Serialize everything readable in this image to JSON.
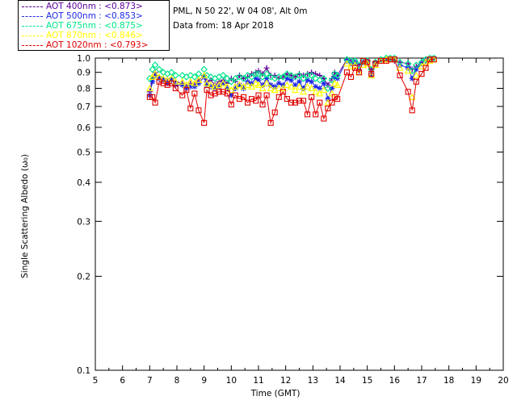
{
  "header": {
    "location": "PML, N 50 22', W 04 08', Alt 0m",
    "date": "Data from: 18 Apr 2018"
  },
  "legend": [
    {
      "label": "AOT  400nm : <0.873>",
      "color": "#5a0096"
    },
    {
      "label": "AOT  500nm : <0.853>",
      "color": "#1e28e6"
    },
    {
      "label": "AOT  675nm : <0.875>",
      "color": "#00e68c"
    },
    {
      "label": "AOT  870nm : <0.846>",
      "color": "#ffff00"
    },
    {
      "label": "AOT 1020nm : <0.793>",
      "color": "#e00000"
    }
  ],
  "chart_data": {
    "type": "scatter",
    "xlabel": "Time (GMT)",
    "ylabel": "Single Scattering Albedo (ω₀)",
    "xlim": [
      5,
      20
    ],
    "ylim": [
      0.1,
      1.0
    ],
    "yscale": "log",
    "xticks": [
      "5",
      "6",
      "7",
      "8",
      "9",
      "10",
      "11",
      "12",
      "13",
      "14",
      "15",
      "16",
      "17",
      "18",
      "19",
      "20"
    ],
    "yticks": [
      {
        "value": 1.0,
        "label": "1.0"
      },
      {
        "value": 0.9,
        "label": "0.9"
      },
      {
        "value": 0.8,
        "label": "0.8"
      },
      {
        "value": 0.7,
        "label": "0.7"
      },
      {
        "value": 0.6,
        "label": "0.6"
      },
      {
        "value": 0.5,
        "label": "0.5"
      },
      {
        "value": 0.4,
        "label": "0.4"
      },
      {
        "value": 0.3,
        "label": "0.3"
      },
      {
        "value": 0.2,
        "label": "0.2"
      },
      {
        "value": 0.1,
        "label": "0.1"
      }
    ],
    "series": [
      {
        "name": "AOT 400nm",
        "color": "#5a0096",
        "marker": "plus",
        "connect": true,
        "x": [
          7.0,
          7.1,
          7.2,
          7.35,
          7.5,
          7.65,
          7.8,
          7.95,
          8.2,
          8.35,
          8.5,
          8.65,
          8.8,
          9.0,
          9.1,
          9.25,
          9.4,
          9.55,
          9.7,
          9.85,
          10.0,
          10.15,
          10.3,
          10.45,
          10.6,
          10.75,
          10.9,
          11.0,
          11.15,
          11.3,
          11.45,
          11.6,
          11.75,
          11.9,
          12.05,
          12.2,
          12.35,
          12.5,
          12.65,
          12.8,
          12.95,
          13.1,
          13.25,
          13.4,
          13.55,
          13.7,
          13.8,
          13.9,
          14.25,
          14.4,
          14.55,
          14.7,
          14.85,
          15.0,
          15.15,
          15.3,
          15.5,
          15.7,
          15.85,
          16.0,
          16.2,
          16.5,
          16.65,
          16.8,
          17.0,
          17.15,
          17.3,
          17.45
        ],
        "y": [
          0.78,
          0.86,
          0.9,
          0.87,
          0.86,
          0.84,
          0.86,
          0.84,
          0.83,
          0.81,
          0.83,
          0.82,
          0.85,
          0.88,
          0.84,
          0.85,
          0.82,
          0.84,
          0.85,
          0.83,
          0.86,
          0.84,
          0.88,
          0.86,
          0.87,
          0.89,
          0.9,
          0.91,
          0.89,
          0.93,
          0.88,
          0.88,
          0.86,
          0.87,
          0.89,
          0.88,
          0.87,
          0.89,
          0.88,
          0.89,
          0.9,
          0.89,
          0.88,
          0.86,
          0.82,
          0.86,
          0.9,
          0.88,
          0.99,
          0.98,
          0.97,
          0.95,
          0.97,
          0.98,
          0.92,
          0.97,
          0.98,
          0.99,
          0.99,
          0.98,
          0.97,
          0.96,
          0.92,
          0.94,
          0.97,
          0.98,
          0.99,
          1.0
        ]
      },
      {
        "name": "AOT 500nm",
        "color": "#1e28e6",
        "marker": "star",
        "connect": true,
        "x": [
          7.0,
          7.1,
          7.2,
          7.35,
          7.5,
          7.65,
          7.8,
          7.95,
          8.2,
          8.35,
          8.5,
          8.65,
          8.8,
          9.0,
          9.1,
          9.25,
          9.4,
          9.55,
          9.7,
          9.85,
          10.0,
          10.15,
          10.3,
          10.45,
          10.6,
          10.75,
          10.9,
          11.0,
          11.15,
          11.3,
          11.45,
          11.6,
          11.75,
          11.9,
          12.05,
          12.2,
          12.35,
          12.5,
          12.65,
          12.8,
          12.95,
          13.1,
          13.25,
          13.4,
          13.55,
          13.7,
          13.8,
          13.9,
          14.25,
          14.4,
          14.55,
          14.7,
          14.85,
          15.0,
          15.15,
          15.3,
          15.5,
          15.7,
          15.85,
          16.0,
          16.2,
          16.5,
          16.65,
          16.8,
          17.0,
          17.15,
          17.3,
          17.45
        ],
        "y": [
          0.76,
          0.84,
          0.88,
          0.86,
          0.85,
          0.83,
          0.85,
          0.82,
          0.82,
          0.8,
          0.81,
          0.81,
          0.83,
          0.87,
          0.82,
          0.81,
          0.8,
          0.81,
          0.83,
          0.8,
          0.76,
          0.8,
          0.82,
          0.8,
          0.84,
          0.83,
          0.86,
          0.85,
          0.82,
          0.86,
          0.82,
          0.81,
          0.83,
          0.82,
          0.86,
          0.85,
          0.82,
          0.84,
          0.8,
          0.85,
          0.84,
          0.81,
          0.8,
          0.83,
          0.74,
          0.8,
          0.87,
          0.86,
          0.98,
          0.96,
          0.97,
          0.91,
          0.97,
          0.97,
          0.88,
          0.96,
          0.99,
          0.99,
          0.99,
          0.99,
          0.95,
          0.93,
          0.86,
          0.92,
          0.96,
          0.98,
          0.99,
          1.0
        ]
      },
      {
        "name": "AOT 675nm",
        "color": "#00e68c",
        "marker": "diamond",
        "connect": false,
        "x": [
          7.0,
          7.1,
          7.2,
          7.35,
          7.5,
          7.65,
          7.8,
          7.95,
          8.2,
          8.35,
          8.5,
          8.65,
          8.8,
          9.0,
          9.1,
          9.25,
          9.4,
          9.55,
          9.7,
          9.85,
          10.0,
          10.15,
          10.3,
          10.45,
          10.6,
          10.75,
          10.9,
          11.0,
          11.15,
          11.3,
          11.45,
          11.6,
          11.75,
          11.9,
          12.05,
          12.2,
          12.35,
          12.5,
          12.65,
          12.8,
          12.95,
          13.1,
          13.25,
          13.4,
          13.55,
          13.7,
          13.8,
          13.9,
          14.25,
          14.4,
          14.55,
          14.7,
          14.85,
          15.0,
          15.15,
          15.3,
          15.5,
          15.7,
          15.85,
          16.0,
          16.2,
          16.5,
          16.65,
          16.8,
          17.0,
          17.15,
          17.3,
          17.45
        ],
        "y": [
          0.86,
          0.92,
          0.95,
          0.92,
          0.9,
          0.89,
          0.9,
          0.88,
          0.88,
          0.87,
          0.88,
          0.87,
          0.89,
          0.92,
          0.88,
          0.87,
          0.86,
          0.87,
          0.88,
          0.86,
          0.84,
          0.86,
          0.87,
          0.86,
          0.88,
          0.87,
          0.89,
          0.89,
          0.87,
          0.89,
          0.87,
          0.86,
          0.87,
          0.87,
          0.89,
          0.88,
          0.87,
          0.88,
          0.86,
          0.88,
          0.88,
          0.86,
          0.85,
          0.86,
          0.8,
          0.85,
          0.89,
          0.88,
          0.99,
          0.98,
          0.98,
          0.95,
          0.98,
          0.98,
          0.92,
          0.97,
          0.99,
          1.0,
          1.0,
          1.0,
          0.97,
          0.96,
          0.91,
          0.95,
          0.97,
          0.99,
          1.0,
          1.0
        ]
      },
      {
        "name": "AOT 870nm",
        "color": "#ffff00",
        "marker": "triangle",
        "connect": false,
        "x": [
          7.0,
          7.1,
          7.2,
          7.35,
          7.5,
          7.65,
          7.8,
          7.95,
          8.2,
          8.35,
          8.5,
          8.65,
          8.8,
          9.0,
          9.1,
          9.25,
          9.4,
          9.55,
          9.7,
          9.85,
          10.0,
          10.15,
          10.3,
          10.45,
          10.6,
          10.75,
          10.9,
          11.0,
          11.15,
          11.3,
          11.45,
          11.6,
          11.75,
          11.9,
          12.05,
          12.2,
          12.35,
          12.5,
          12.65,
          12.8,
          12.95,
          13.1,
          13.25,
          13.4,
          13.55,
          13.7,
          13.8,
          13.9,
          14.25,
          14.4,
          14.55,
          14.7,
          14.85,
          15.0,
          15.15,
          15.3,
          15.5,
          15.7,
          15.85,
          16.0,
          16.2,
          16.5,
          16.65,
          16.8,
          17.0,
          17.15,
          17.3,
          17.45
        ],
        "y": [
          0.8,
          0.87,
          0.89,
          0.87,
          0.86,
          0.85,
          0.86,
          0.84,
          0.84,
          0.82,
          0.84,
          0.83,
          0.85,
          0.88,
          0.83,
          0.82,
          0.81,
          0.82,
          0.83,
          0.81,
          0.79,
          0.81,
          0.82,
          0.81,
          0.82,
          0.81,
          0.83,
          0.82,
          0.8,
          0.83,
          0.8,
          0.79,
          0.8,
          0.8,
          0.82,
          0.81,
          0.79,
          0.81,
          0.78,
          0.81,
          0.8,
          0.78,
          0.77,
          0.79,
          0.72,
          0.77,
          0.83,
          0.82,
          0.96,
          0.94,
          0.95,
          0.9,
          0.95,
          0.96,
          0.88,
          0.95,
          0.98,
          0.99,
          0.99,
          0.99,
          0.93,
          0.91,
          0.75,
          0.88,
          0.94,
          0.97,
          0.98,
          0.99
        ]
      },
      {
        "name": "AOT 1020nm",
        "color": "#e00000",
        "marker": "square",
        "connect": true,
        "x": [
          7.0,
          7.1,
          7.2,
          7.35,
          7.5,
          7.65,
          7.8,
          7.95,
          8.2,
          8.35,
          8.5,
          8.65,
          8.8,
          9.0,
          9.1,
          9.25,
          9.4,
          9.55,
          9.7,
          9.85,
          10.0,
          10.15,
          10.3,
          10.45,
          10.6,
          10.75,
          10.9,
          11.0,
          11.15,
          11.3,
          11.45,
          11.6,
          11.75,
          11.9,
          12.05,
          12.2,
          12.35,
          12.5,
          12.65,
          12.8,
          12.95,
          13.1,
          13.25,
          13.4,
          13.55,
          13.7,
          13.8,
          13.9,
          14.25,
          14.4,
          14.55,
          14.7,
          14.85,
          15.0,
          15.15,
          15.3,
          15.5,
          15.7,
          15.85,
          16.0,
          16.2,
          16.5,
          16.65,
          16.8,
          17.0,
          17.15,
          17.3,
          17.45
        ],
        "y": [
          0.75,
          0.75,
          0.72,
          0.84,
          0.83,
          0.82,
          0.83,
          0.8,
          0.76,
          0.79,
          0.69,
          0.77,
          0.68,
          0.62,
          0.79,
          0.76,
          0.77,
          0.78,
          0.78,
          0.77,
          0.71,
          0.76,
          0.74,
          0.75,
          0.72,
          0.74,
          0.73,
          0.76,
          0.71,
          0.76,
          0.62,
          0.67,
          0.75,
          0.78,
          0.74,
          0.72,
          0.72,
          0.73,
          0.73,
          0.66,
          0.75,
          0.66,
          0.72,
          0.64,
          0.69,
          0.72,
          0.75,
          0.74,
          0.9,
          0.87,
          0.93,
          0.9,
          0.98,
          0.97,
          0.89,
          0.96,
          0.98,
          0.98,
          0.99,
          0.99,
          0.88,
          0.78,
          0.68,
          0.84,
          0.89,
          0.93,
          0.99,
          0.99
        ]
      }
    ]
  }
}
